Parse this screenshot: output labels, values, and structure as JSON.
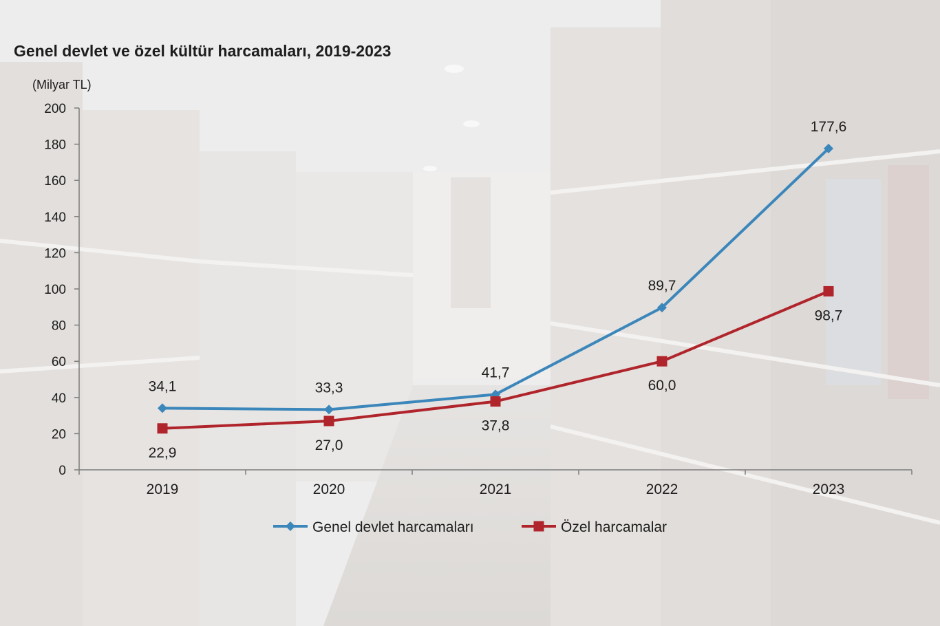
{
  "chart_data": {
    "type": "line",
    "title": "Genel devlet ve özel kültür harcamaları, 2019-2023",
    "unit_label": "(Milyar TL)",
    "xlabel": "",
    "ylabel": "Milyar TL",
    "ylim": [
      0,
      200
    ],
    "ytick_step": 20,
    "yticks": [
      "0",
      "20",
      "40",
      "60",
      "80",
      "100",
      "120",
      "140",
      "160",
      "180",
      "200"
    ],
    "categories": [
      "2019",
      "2020",
      "2021",
      "2022",
      "2023"
    ],
    "series": [
      {
        "name": "Genel devlet harcamaları",
        "color": "#3b86ba",
        "marker": "diamond",
        "values": [
          34.1,
          33.3,
          41.7,
          89.7,
          177.6
        ],
        "labels": [
          "34,1",
          "33,3",
          "41,7",
          "89,7",
          "177,6"
        ],
        "label_position": "above"
      },
      {
        "name": "Özel harcamalar",
        "color": "#b0242b",
        "marker": "square",
        "values": [
          22.9,
          27.0,
          37.8,
          60.0,
          98.7
        ],
        "labels": [
          "22,9",
          "27,0",
          "37,8",
          "60,0",
          "98,7"
        ],
        "label_position": "below"
      }
    ],
    "legend_position": "bottom",
    "grid": false
  }
}
